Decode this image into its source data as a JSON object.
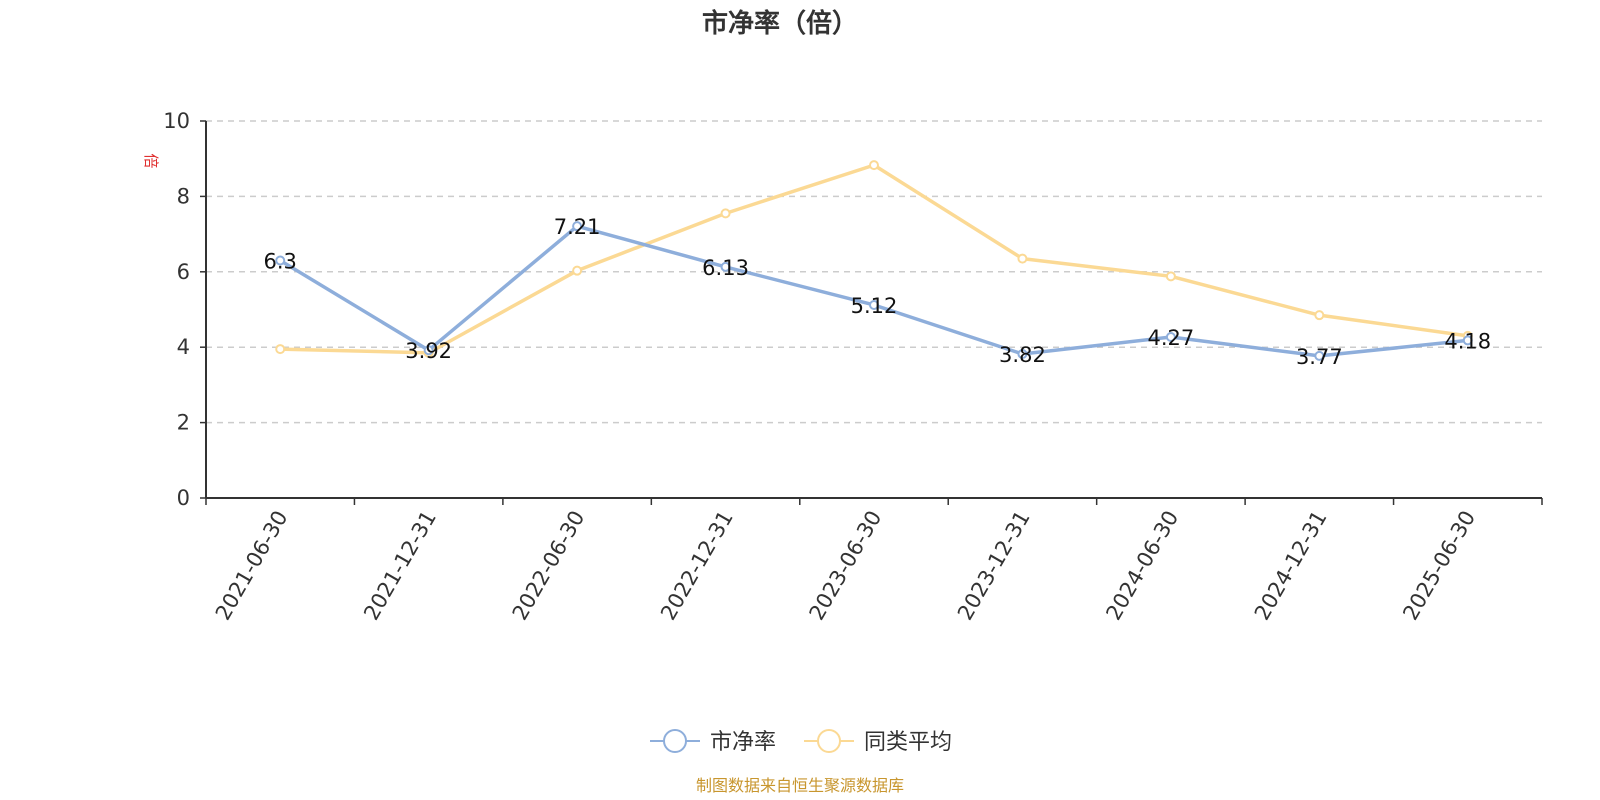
{
  "chart_data": {
    "type": "line",
    "title": "市净率（倍）",
    "ylabel": "倍",
    "xlabel": "",
    "categories": [
      "2021-06-30",
      "2021-12-31",
      "2022-06-30",
      "2022-12-31",
      "2023-06-30",
      "2023-12-31",
      "2024-06-30",
      "2024-12-31",
      "2025-06-30"
    ],
    "ylim": [
      0,
      10
    ],
    "yticks": [
      0,
      2,
      4,
      6,
      8,
      10
    ],
    "grid": true,
    "legend_position": "bottom-center",
    "series": [
      {
        "name": "市净率",
        "color": "#8eaedb",
        "values": [
          6.3,
          3.92,
          7.21,
          6.13,
          5.12,
          3.82,
          4.27,
          3.77,
          4.18
        ],
        "labels": [
          "6.3",
          "3.92",
          "7.21",
          "6.13",
          "5.12",
          "3.82",
          "4.27",
          "3.77",
          "4.18"
        ]
      },
      {
        "name": "同类平均",
        "color": "#fbd994",
        "values": [
          3.95,
          3.85,
          6.03,
          7.55,
          8.83,
          6.35,
          5.88,
          4.85,
          4.3
        ]
      }
    ]
  },
  "colors": {
    "ylabel": "#e03030",
    "source": "#c8962e",
    "axis": "#333333",
    "grid": "#cccccc"
  },
  "source_note": "制图数据来自恒生聚源数据库"
}
